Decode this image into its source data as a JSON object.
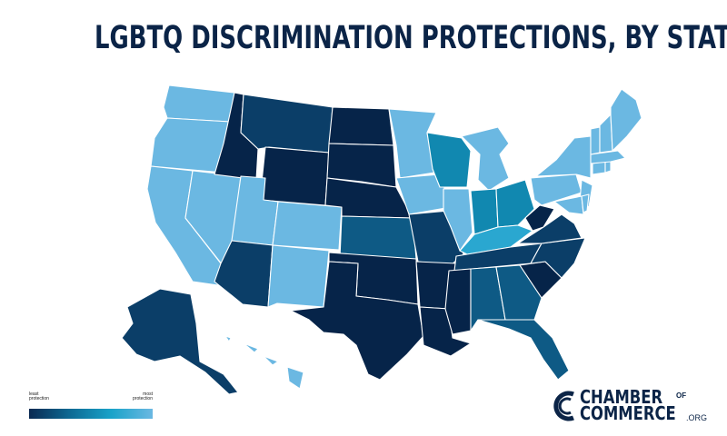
{
  "title": "LGBTQ DISCRIMINATION PROTECTIONS, BY STATE",
  "legend": {
    "low_label": "least\nprotection",
    "high_label": "most\nprotection",
    "gradient": [
      "#0a2a52",
      "#0d6a94",
      "#1aa3c9",
      "#6bb8e2"
    ]
  },
  "colors": {
    "least": "#062449",
    "low": "#0b3e68",
    "mid_low": "#0e5a85",
    "mid": "#1188b0",
    "mid_high": "#2aa7d0",
    "most": "#6bb8e2"
  },
  "logo": {
    "line1": "CHAMBER",
    "of": "OF",
    "line2": "COMMERCE",
    "suffix": ".ORG",
    "icon": "chamber-logo-icon"
  }
}
